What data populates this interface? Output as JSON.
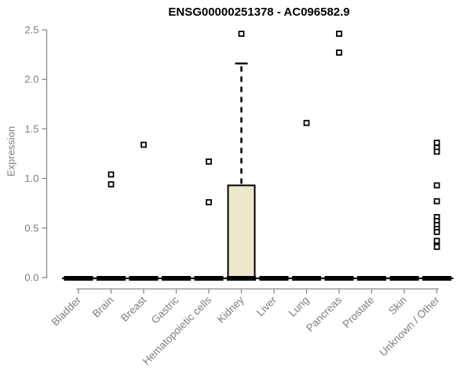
{
  "chart_data": {
    "type": "boxplot",
    "title": "ENSG00000251378 - AC096582.9",
    "ylabel": "Expression",
    "xlabel": "",
    "ylim": [
      0,
      2.5
    ],
    "yticks": [
      0,
      0.5,
      1,
      1.5,
      2,
      2.5
    ],
    "ytick_labels": [
      "0.0",
      "0.5",
      "1.0",
      "1.5",
      "2.0",
      "2.5"
    ],
    "grid": false,
    "legend": "none",
    "categories": [
      "Bladder",
      "Brain",
      "Breast",
      "Gastric",
      "Hematopoietic cells",
      "Kidney",
      "Liver",
      "Lung",
      "Pancreas",
      "Prostate",
      "Skin",
      "Unknown / Other"
    ],
    "boxes": [
      {
        "category": "Bladder",
        "whisker_low": 0,
        "q1": 0,
        "median": 0,
        "q3": 0,
        "whisker_high": 0,
        "outliers": []
      },
      {
        "category": "Brain",
        "whisker_low": 0,
        "q1": 0,
        "median": 0,
        "q3": 0,
        "whisker_high": 0,
        "outliers": [
          1.04,
          0.94
        ]
      },
      {
        "category": "Breast",
        "whisker_low": 0,
        "q1": 0,
        "median": 0,
        "q3": 0,
        "whisker_high": 0,
        "outliers": [
          1.34
        ]
      },
      {
        "category": "Gastric",
        "whisker_low": 0,
        "q1": 0,
        "median": 0,
        "q3": 0,
        "whisker_high": 0,
        "outliers": []
      },
      {
        "category": "Hematopoietic cells",
        "whisker_low": 0,
        "q1": 0,
        "median": 0,
        "q3": 0,
        "whisker_high": 0,
        "outliers": [
          1.17,
          0.76
        ]
      },
      {
        "category": "Kidney",
        "whisker_low": 0,
        "q1": 0,
        "median": 0,
        "q3": 0.93,
        "whisker_high": 2.16,
        "outliers": [
          2.46
        ]
      },
      {
        "category": "Liver",
        "whisker_low": 0,
        "q1": 0,
        "median": 0,
        "q3": 0,
        "whisker_high": 0,
        "outliers": []
      },
      {
        "category": "Lung",
        "whisker_low": 0,
        "q1": 0,
        "median": 0,
        "q3": 0,
        "whisker_high": 0,
        "outliers": [
          1.56
        ]
      },
      {
        "category": "Pancreas",
        "whisker_low": 0,
        "q1": 0,
        "median": 0,
        "q3": 0,
        "whisker_high": 0,
        "outliers": [
          2.46,
          2.27
        ]
      },
      {
        "category": "Prostate",
        "whisker_low": 0,
        "q1": 0,
        "median": 0,
        "q3": 0,
        "whisker_high": 0,
        "outliers": []
      },
      {
        "category": "Skin",
        "whisker_low": 0,
        "q1": 0,
        "median": 0,
        "q3": 0,
        "whisker_high": 0,
        "outliers": []
      },
      {
        "category": "Unknown / Other",
        "whisker_low": 0,
        "q1": 0,
        "median": 0,
        "q3": 0,
        "whisker_high": 0,
        "outliers": [
          1.36,
          1.31,
          1.27,
          0.93,
          0.77,
          0.61,
          0.57,
          0.53,
          0.49,
          0.46,
          0.37,
          0.31
        ]
      }
    ],
    "colors": {
      "box_fill": "#ece8cc",
      "box_border": "#000000",
      "median": "#000000",
      "whisker": "#000000",
      "outlier": "#000000",
      "axis": "#898989",
      "tick_label": "#7e7e7e",
      "title": "#000000",
      "background": "#ffffff"
    }
  }
}
